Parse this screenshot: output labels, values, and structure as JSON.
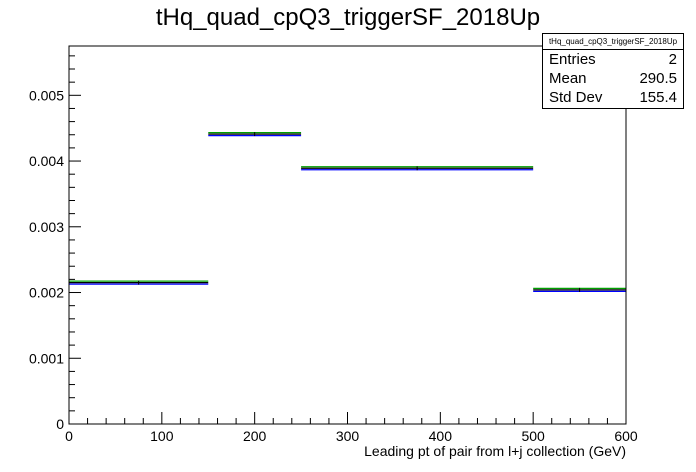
{
  "chart_data": {
    "type": "histogram",
    "title": "tHq_quad_cpQ3_triggerSF_2018Up",
    "xlabel": "Leading pt of pair from l+j collection (GeV)",
    "ylabel": "",
    "xlim": [
      0,
      600
    ],
    "ylim": [
      0,
      0.00575
    ],
    "x_ticks": [
      0,
      100,
      200,
      300,
      400,
      500,
      600
    ],
    "y_ticks": [
      0,
      0.001,
      0.002,
      0.003,
      0.004,
      0.005
    ],
    "y_tick_labels": [
      "0",
      "0.001",
      "0.002",
      "0.003",
      "0.004",
      "0.005"
    ],
    "bins": [
      {
        "low": 0,
        "high": 150,
        "value": 0.00215
      },
      {
        "low": 150,
        "high": 250,
        "value": 0.00441
      },
      {
        "low": 250,
        "high": 500,
        "value": 0.00389
      },
      {
        "low": 500,
        "high": 600,
        "value": 0.00204
      }
    ],
    "line_colors": [
      "#000000",
      "#0000ff",
      "#00a000"
    ],
    "legend_position": "top-right",
    "grid": false
  },
  "stats": {
    "title": "tHq_quad_cpQ3_triggerSF_2018Up",
    "rows": [
      {
        "label": "Entries",
        "value": "2"
      },
      {
        "label": "Mean",
        "value": "290.5"
      },
      {
        "label": "Std Dev",
        "value": "155.4"
      }
    ]
  }
}
